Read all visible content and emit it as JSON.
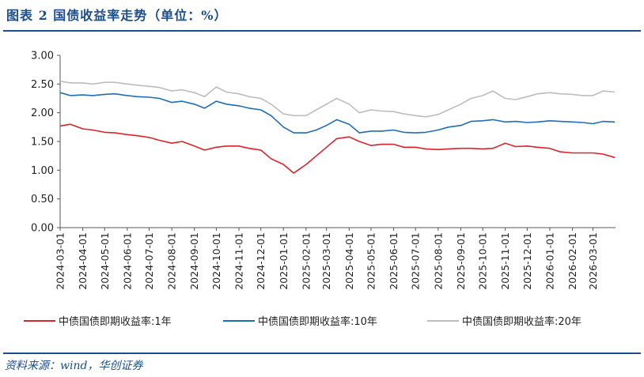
{
  "header": {
    "title": "图表 2   国债收益率走势（单位：%）"
  },
  "footer": {
    "source": "资料来源：wind，华创证券"
  },
  "colors": {
    "accent": "#1a4e8c",
    "series_1y": "#d9232d",
    "series_10y": "#1f6db5",
    "series_20y": "#bdbdbd"
  },
  "chart_data": {
    "type": "line",
    "title": "",
    "xlabel": "",
    "ylabel": "",
    "ylim": [
      0,
      3
    ],
    "yticks": [
      "0.00",
      "0.50",
      "1.00",
      "1.50",
      "2.00",
      "2.50",
      "3.00"
    ],
    "x_ticks": [
      "2024-03-01",
      "2024-04-01",
      "2024-05-01",
      "2024-06-01",
      "2024-07-01",
      "2024-08-01",
      "2024-09-01",
      "2024-10-01",
      "2024-11-01",
      "2024-12-01",
      "2025-01-01",
      "2025-02-01",
      "2025-03-01",
      "2025-04-01",
      "2025-05-01",
      "2025-06-01",
      "2025-07-01",
      "2025-08-01",
      "2025-09-01",
      "2025-10-01",
      "2025-11-01",
      "2025-12-01",
      "2026-01-01",
      "2026-02-01",
      "2026-03-01"
    ],
    "grid": false,
    "legend_position": "bottom",
    "x": [
      "2024-03-01",
      "2024-03-15",
      "2024-04-01",
      "2024-04-15",
      "2024-05-01",
      "2024-05-15",
      "2024-06-01",
      "2024-06-15",
      "2024-07-01",
      "2024-07-15",
      "2024-08-01",
      "2024-08-15",
      "2024-09-01",
      "2024-09-15",
      "2024-10-01",
      "2024-10-15",
      "2024-11-01",
      "2024-11-15",
      "2024-12-01",
      "2024-12-15",
      "2025-01-01",
      "2025-01-15",
      "2025-02-01",
      "2025-02-15",
      "2025-03-01",
      "2025-03-15",
      "2025-04-01",
      "2025-04-15",
      "2025-05-01",
      "2025-05-15",
      "2025-06-01",
      "2025-06-15",
      "2025-07-01",
      "2025-07-15",
      "2025-08-01",
      "2025-08-15",
      "2025-09-01",
      "2025-09-15",
      "2025-10-01",
      "2025-10-15",
      "2025-11-01",
      "2025-11-15",
      "2025-12-01",
      "2025-12-15",
      "2026-01-01",
      "2026-01-15",
      "2026-02-01",
      "2026-02-15",
      "2026-03-01",
      "2026-03-15",
      "2026-03-31"
    ],
    "series": [
      {
        "name": "中债国债即期收益率:1年",
        "values": [
          1.77,
          1.8,
          1.72,
          1.7,
          1.66,
          1.65,
          1.62,
          1.6,
          1.57,
          1.52,
          1.47,
          1.5,
          1.42,
          1.35,
          1.4,
          1.42,
          1.42,
          1.38,
          1.35,
          1.2,
          1.1,
          0.95,
          1.1,
          1.25,
          1.4,
          1.55,
          1.58,
          1.5,
          1.43,
          1.45,
          1.45,
          1.4,
          1.4,
          1.37,
          1.36,
          1.37,
          1.38,
          1.38,
          1.37,
          1.38,
          1.47,
          1.41,
          1.42,
          1.4,
          1.38,
          1.32,
          1.3,
          1.3,
          1.3,
          1.28,
          1.22
        ]
      },
      {
        "name": "中债国债即期收益率:10年",
        "values": [
          2.35,
          2.3,
          2.31,
          2.3,
          2.32,
          2.33,
          2.3,
          2.28,
          2.27,
          2.25,
          2.18,
          2.2,
          2.15,
          2.08,
          2.2,
          2.15,
          2.12,
          2.08,
          2.05,
          1.95,
          1.75,
          1.65,
          1.65,
          1.7,
          1.78,
          1.88,
          1.8,
          1.65,
          1.68,
          1.68,
          1.7,
          1.66,
          1.65,
          1.66,
          1.7,
          1.75,
          1.78,
          1.85,
          1.86,
          1.88,
          1.84,
          1.85,
          1.83,
          1.84,
          1.86,
          1.85,
          1.84,
          1.83,
          1.81,
          1.85,
          1.84
        ]
      },
      {
        "name": "中债国债即期收益率:20年",
        "values": [
          2.55,
          2.52,
          2.52,
          2.5,
          2.53,
          2.53,
          2.5,
          2.48,
          2.46,
          2.44,
          2.38,
          2.4,
          2.35,
          2.28,
          2.45,
          2.36,
          2.33,
          2.28,
          2.25,
          2.15,
          1.98,
          1.95,
          1.95,
          2.05,
          2.15,
          2.25,
          2.15,
          2.0,
          2.05,
          2.03,
          2.02,
          1.98,
          1.95,
          1.93,
          1.97,
          2.05,
          2.15,
          2.25,
          2.3,
          2.38,
          2.25,
          2.23,
          2.28,
          2.33,
          2.35,
          2.33,
          2.32,
          2.3,
          2.3,
          2.38,
          2.36
        ]
      }
    ]
  }
}
